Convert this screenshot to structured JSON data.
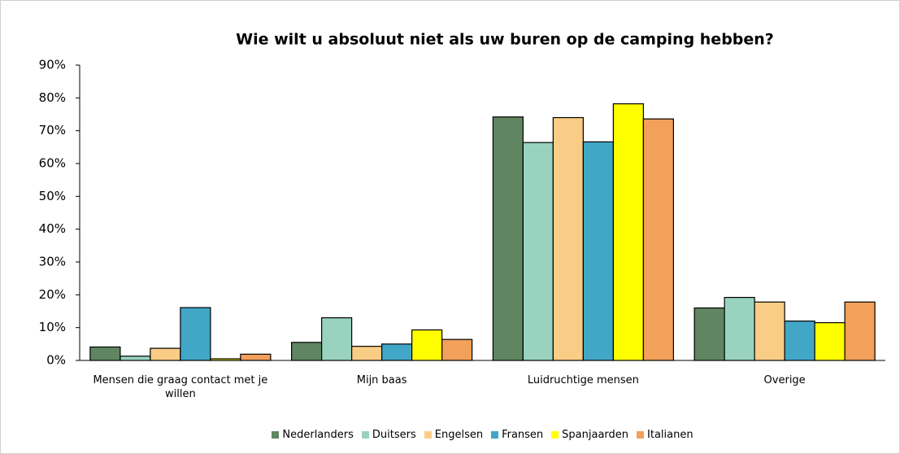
{
  "chart_data": {
    "type": "bar",
    "title": "Wie wilt u absoluut niet als uw buren op de camping hebben?",
    "categories": [
      "Mensen die graag contact met je willen",
      "Mijn baas",
      "Luidruchtige mensen",
      "Overige"
    ],
    "series": [
      {
        "name": "Nederlanders",
        "color": "#5f8660",
        "values": [
          4.1,
          5.5,
          74.2,
          16.0
        ]
      },
      {
        "name": "Duitsers",
        "color": "#99d3c0",
        "values": [
          1.3,
          13.0,
          66.4,
          19.2
        ]
      },
      {
        "name": "Engelsen",
        "color": "#f9cd85",
        "values": [
          3.7,
          4.3,
          74.0,
          17.8
        ]
      },
      {
        "name": "Fransen",
        "color": "#42a6c7",
        "values": [
          16.1,
          5.0,
          66.6,
          12.0
        ]
      },
      {
        "name": "Spanjaarden",
        "color": "#ffff00",
        "values": [
          0.5,
          9.3,
          78.2,
          11.5
        ]
      },
      {
        "name": "Italianen",
        "color": "#f2a05a",
        "values": [
          1.9,
          6.4,
          73.6,
          17.8
        ]
      }
    ],
    "ylim": [
      0,
      90
    ],
    "yticks": [
      {
        "value": 0,
        "label": "0%"
      },
      {
        "value": 10,
        "label": "10%"
      },
      {
        "value": 20,
        "label": "20%"
      },
      {
        "value": 30,
        "label": "30%"
      },
      {
        "value": 40,
        "label": "40%"
      },
      {
        "value": 50,
        "label": "50%"
      },
      {
        "value": 60,
        "label": "60%"
      },
      {
        "value": 70,
        "label": "70%"
      },
      {
        "value": 80,
        "label": "80%"
      },
      {
        "value": 90,
        "label": "90%"
      }
    ],
    "grid": false,
    "legend": "bottom"
  }
}
